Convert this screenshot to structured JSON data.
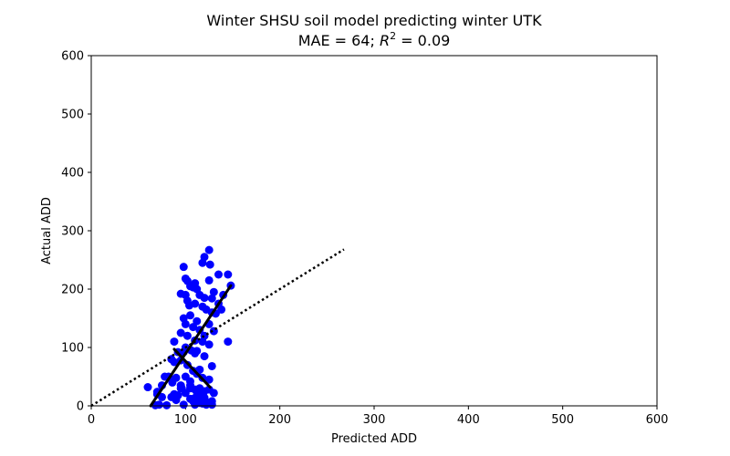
{
  "chart_data": {
    "type": "scatter",
    "title": "Winter SHSU soil model predicting winter UTK",
    "subtitle": {
      "mae_label": "MAE = 64; ",
      "r2_letter": "R",
      "r2_exp": "2",
      "r2_value": " = 0.09"
    },
    "xlabel": "Predicted ADD",
    "ylabel": "Actual ADD",
    "xlim": [
      0,
      600
    ],
    "ylim": [
      0,
      600
    ],
    "xticks": [
      0,
      100,
      200,
      300,
      400,
      500,
      600
    ],
    "yticks": [
      0,
      100,
      200,
      300,
      400,
      500,
      600
    ],
    "grid": false,
    "marker_color": "#0000ff",
    "line_color": "#000000",
    "series": [
      {
        "marker": "circle",
        "x": [
          125,
          120,
          118,
          126,
          98,
          135,
          145,
          100,
          102,
          110,
          148,
          105,
          108,
          125,
          112,
          130,
          95,
          100,
          115,
          120,
          128,
          140,
          102,
          110,
          135,
          104,
          118,
          122,
          128,
          132,
          105,
          98,
          112,
          125,
          138,
          100,
          108,
          115,
          130,
          145,
          95,
          102,
          120,
          88,
          110,
          118,
          125,
          100,
          106,
          98,
          112,
          92,
          85,
          110,
          120,
          95,
          88,
          128,
          102,
          115,
          108,
          112,
          82,
          100,
          118,
          90,
          78,
          75,
          86,
          95,
          125,
          105,
          96,
          110,
          120,
          130,
          100,
          115,
          112,
          85,
          70,
          75,
          90,
          105,
          120,
          108,
          115,
          125,
          98,
          110,
          118,
          122,
          128,
          80,
          72,
          68,
          92,
          105,
          60,
          70,
          115,
          125,
          105,
          118,
          128,
          112,
          120,
          108,
          88,
          95
        ],
        "y": [
          267,
          255,
          245,
          242,
          238,
          225,
          225,
          218,
          214,
          210,
          206,
          205,
          203,
          215,
          200,
          195,
          192,
          190,
          190,
          185,
          184,
          190,
          180,
          175,
          175,
          172,
          170,
          165,
          160,
          158,
          155,
          150,
          145,
          140,
          165,
          140,
          135,
          130,
          128,
          110,
          125,
          120,
          120,
          110,
          112,
          110,
          105,
          100,
          95,
          92,
          94,
          92,
          80,
          90,
          85,
          78,
          75,
          68,
          70,
          62,
          60,
          55,
          50,
          50,
          48,
          48,
          50,
          35,
          40,
          35,
          45,
          42,
          30,
          28,
          25,
          22,
          22,
          20,
          18,
          15,
          20,
          15,
          10,
          12,
          12,
          8,
          5,
          5,
          2,
          2,
          4,
          2,
          2,
          1,
          2,
          1,
          18,
          30,
          32,
          24,
          30,
          28,
          35,
          15,
          8,
          10,
          14,
          12,
          20,
          30
        ]
      }
    ],
    "lines": [
      {
        "name": "fit-line-rising",
        "style": "solid",
        "x": [
          63,
          148
        ],
        "y": [
          0,
          206
        ]
      },
      {
        "name": "fit-line-falling",
        "style": "solid",
        "x": [
          88,
          126
        ],
        "y": [
          97,
          32
        ]
      },
      {
        "name": "identity-line",
        "style": "dotted",
        "x": [
          0,
          268
        ],
        "y": [
          0,
          268
        ]
      }
    ]
  }
}
